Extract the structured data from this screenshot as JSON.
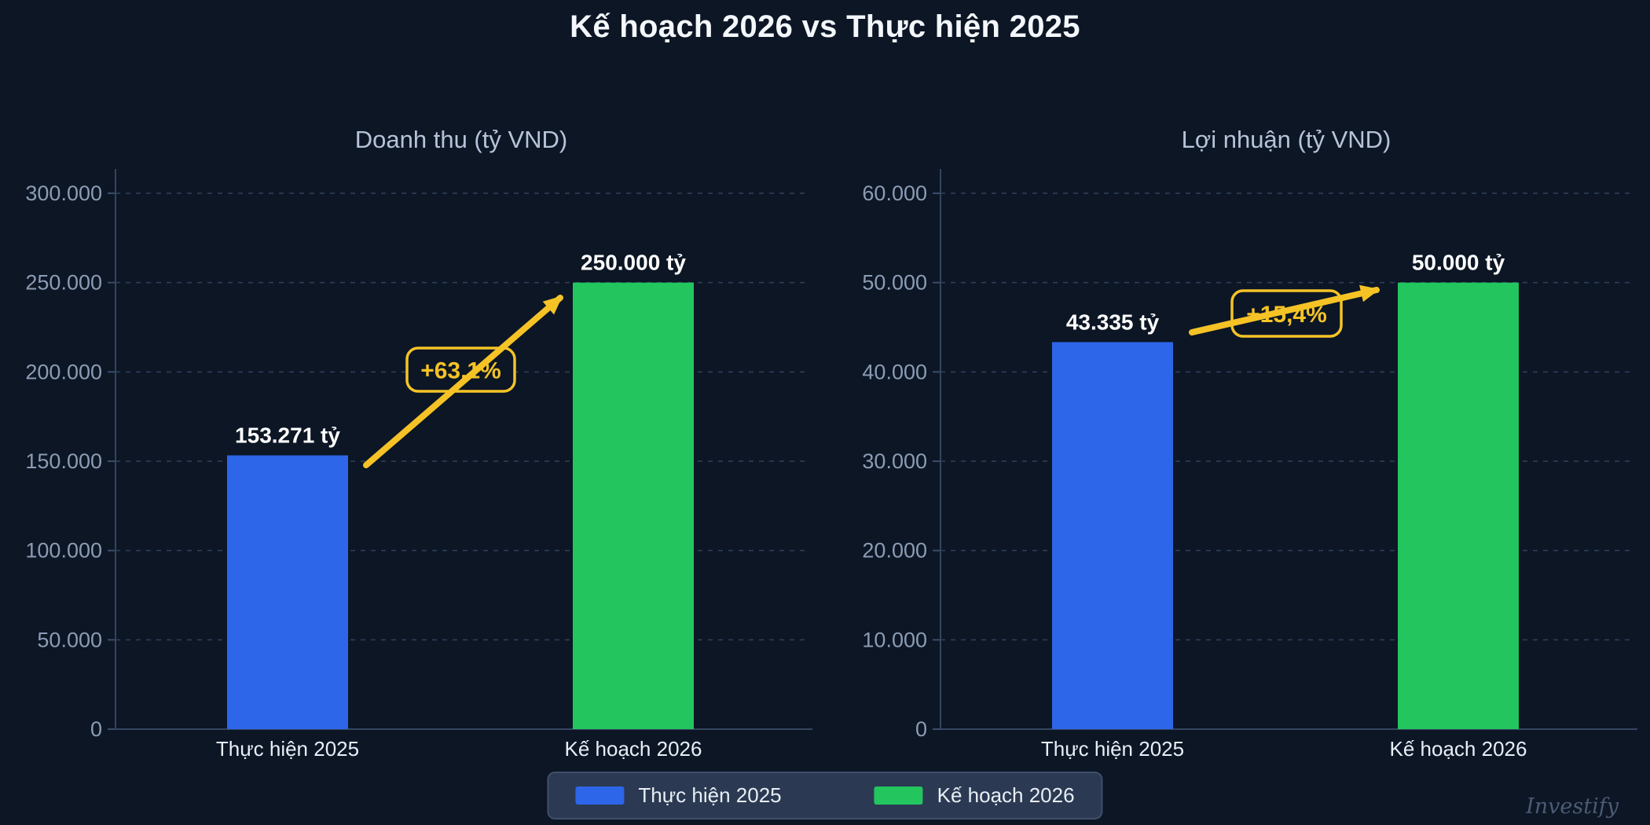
{
  "title": "Kế hoạch 2026 vs Thực hiện 2025",
  "colors": {
    "background": "#0c1625",
    "bar_blue": "#2d66e8",
    "bar_green": "#23c55f",
    "accent_yellow": "#f5c326",
    "grid": "#3a4c6b",
    "axis": "#35455f",
    "tick_label": "#8b9cb4",
    "category_label": "#e8eef7",
    "value_label": "#ffffff",
    "subtitle": "#b6c3d8",
    "legend_bg": "#2b3a52"
  },
  "chart_data": [
    {
      "type": "bar",
      "title": "Doanh thu (tỷ VND)",
      "categories": [
        "Thực hiện 2025",
        "Kế hoạch 2026"
      ],
      "values": [
        153271,
        250000
      ],
      "bar_labels": [
        "153.271 tỷ",
        "250.000 tỷ"
      ],
      "bar_colors": [
        "#2d66e8",
        "#23c55f"
      ],
      "ylim": [
        0,
        300000
      ],
      "ytick_labels": [
        "0",
        "50.000",
        "100.000",
        "150.000",
        "200.000",
        "250.000",
        "300.000"
      ],
      "grid": "horizontal-dashed",
      "annotation": {
        "text": "+63,1%"
      }
    },
    {
      "type": "bar",
      "title": "Lợi nhuận (tỷ VND)",
      "categories": [
        "Thực hiện 2025",
        "Kế hoạch 2026"
      ],
      "values": [
        43335,
        50000
      ],
      "bar_labels": [
        "43.335 tỷ",
        "50.000 tỷ"
      ],
      "bar_colors": [
        "#2d66e8",
        "#23c55f"
      ],
      "ylim": [
        0,
        60000
      ],
      "ytick_labels": [
        "0",
        "10.000",
        "20.000",
        "30.000",
        "40.000",
        "50.000",
        "60.000"
      ],
      "grid": "horizontal-dashed",
      "annotation": {
        "text": "+15,4%"
      }
    }
  ],
  "legend": {
    "items": [
      {
        "label": "Thực hiện 2025",
        "color": "#2d66e8"
      },
      {
        "label": "Kế hoạch 2026",
        "color": "#23c55f"
      }
    ]
  },
  "watermark": "Investify"
}
